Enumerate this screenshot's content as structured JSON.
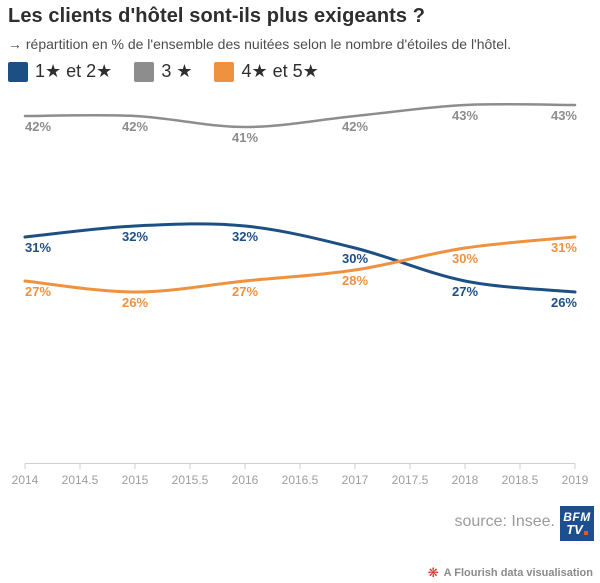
{
  "header": {
    "title": "Les clients d'hôtel sont-ils plus exigeants ?",
    "subtitle": "→ répartition en % de l'ensemble des nuitées selon le nombre d'étoiles de l'hôtel."
  },
  "legend": {
    "items": [
      {
        "label": "1★ et 2★",
        "color": "#1d4f85"
      },
      {
        "label": "3 ★",
        "color": "#8d8d8d"
      },
      {
        "label": "4★ et 5★",
        "color": "#ef923f"
      }
    ]
  },
  "chart_data": {
    "type": "line",
    "title": "Les clients d'hôtel sont-ils plus exigeants ?",
    "subtitle": "→ répartition en % de l'ensemble des nuitées selon le nombre d'étoiles de l'hôtel.",
    "x": [
      2014,
      2015,
      2016,
      2017,
      2018,
      2019
    ],
    "x_ticks": [
      "2014",
      "2014.5",
      "2015",
      "2015.5",
      "2016",
      "2016.5",
      "2017",
      "2017.5",
      "2018",
      "2018.5",
      "2019"
    ],
    "series": [
      {
        "name": "1★ et 2★",
        "color": "#1d4f85",
        "values": [
          31,
          32,
          32,
          30,
          27,
          26
        ]
      },
      {
        "name": "3 ★",
        "color": "#8d8d8d",
        "values": [
          42,
          42,
          41,
          42,
          43,
          43
        ]
      },
      {
        "name": "4★ et 5★",
        "color": "#ef923f",
        "values": [
          27,
          26,
          27,
          28,
          30,
          31
        ]
      }
    ],
    "data_label_suffix": "%",
    "xlim": [
      2014,
      2019
    ],
    "y_axis": "hidden",
    "grid": false,
    "legend_position": "top",
    "curve": "smooth",
    "axis_label_color": "#9e9e9e",
    "axis_line_color": "#cfcfcf"
  },
  "footer": {
    "source": "source: Insee.",
    "logo": {
      "line1": "BFM",
      "line2": "TV",
      "background": "#1c4f8f",
      "dot_color": "#e8542a"
    },
    "attribution": {
      "icon": "flourish-flower-icon",
      "icon_color": "#cf2d27",
      "text": "A Flourish data visualisation"
    }
  }
}
